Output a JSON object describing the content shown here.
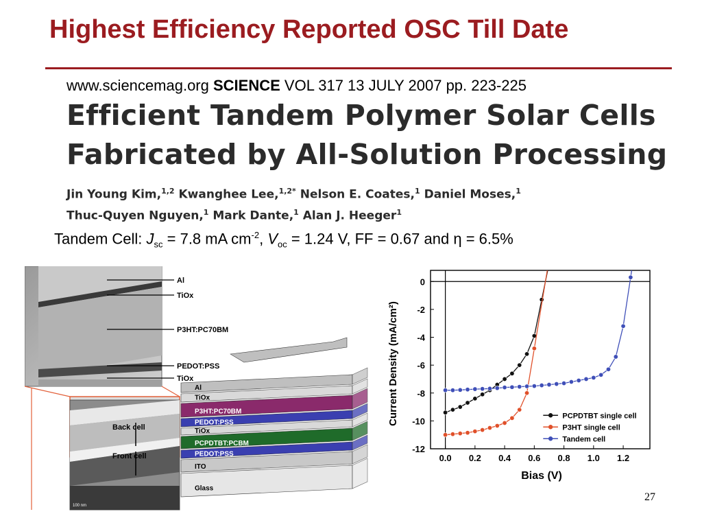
{
  "slide": {
    "title": "Highest Efficiency Reported OSC Till Date",
    "page_number": "27"
  },
  "citation": {
    "url": "www.sciencemag.org",
    "journal": "SCIENCE",
    "details": "VOL 317 13 JULY 2007 pp. 223-225"
  },
  "paper": {
    "title_line1": "Efficient Tandem Polymer Solar Cells",
    "title_line2": "Fabricated by All-Solution Processing",
    "authors": [
      {
        "name": "Jin Young Kim,",
        "aff": "1,2"
      },
      {
        "name": "Kwanghee Lee,",
        "aff": "1,2*"
      },
      {
        "name": "Nelson E. Coates,",
        "aff": "1"
      },
      {
        "name": "Daniel Moses,",
        "aff": "1"
      },
      {
        "name": "Thuc-Quyen Nguyen,",
        "aff": "1"
      },
      {
        "name": "Mark Dante,",
        "aff": "1"
      },
      {
        "name": "Alan J. Heeger",
        "aff": "1"
      }
    ]
  },
  "tandem": {
    "prefix": "Tandem Cell: ",
    "jsc_symbol": "J",
    "jsc_sub": "sc",
    "jsc_value": " = 7.8 mA cm",
    "jsc_exp": "-2",
    "sep": ", ",
    "voc_symbol": "V",
    "voc_sub": "oc",
    "voc_value": " = 1.24 V, FF = 0.67 and ",
    "eta": "η",
    "eta_value": " = 6.5%"
  },
  "device_figure": {
    "tem_labels": [
      "Al",
      "TiOx",
      "P3HT:PC70BM",
      "PEDOT:PSS",
      "TiOx"
    ],
    "inset_labels": [
      "Back cell",
      "Front cell"
    ],
    "scale_bar": "100 nm",
    "stack_layers": [
      {
        "label": "Al",
        "color": "#bfbfbf"
      },
      {
        "label": "TiOx",
        "color": "#d9d9d9"
      },
      {
        "label": "P3HT:PC70BM",
        "color": "#8a2a6b"
      },
      {
        "label": "PEDOT:PSS",
        "color": "#3a3fb0"
      },
      {
        "label": "TiOx",
        "color": "#d9d9d9"
      },
      {
        "label": "PCPDTBT:PCBM",
        "color": "#1f6b2a"
      },
      {
        "label": "PEDOT:PSS",
        "color": "#3a3fb0"
      },
      {
        "label": "ITO",
        "color": "#c8c8c8"
      },
      {
        "label": "Glass",
        "color": "#e6e6e6"
      }
    ]
  },
  "chart_data": {
    "type": "line",
    "xlabel": "Bias (V)",
    "ylabel": "Current Density (mA/cm²)",
    "xlim": [
      -0.1,
      1.38
    ],
    "ylim": [
      -12,
      0.8
    ],
    "xticks": [
      "0.0",
      "0.2",
      "0.4",
      "0.6",
      "0.8",
      "1.0",
      "1.2"
    ],
    "yticks": [
      "0",
      "-2",
      "-4",
      "-6",
      "-8",
      "-10",
      "-12"
    ],
    "legend_position": "bottom-right",
    "series": [
      {
        "name": "PCPDTBT single cell",
        "color": "#111111",
        "x": [
          0.0,
          0.05,
          0.1,
          0.15,
          0.2,
          0.25,
          0.3,
          0.35,
          0.4,
          0.45,
          0.5,
          0.55,
          0.6,
          0.65
        ],
        "y": [
          -9.4,
          -9.2,
          -9.0,
          -8.7,
          -8.4,
          -8.1,
          -7.8,
          -7.4,
          -7.0,
          -6.6,
          -6.0,
          -5.2,
          -3.9,
          -1.3
        ]
      },
      {
        "name": "P3HT single cell",
        "color": "#e0502a",
        "x": [
          0.0,
          0.05,
          0.1,
          0.15,
          0.2,
          0.25,
          0.3,
          0.35,
          0.4,
          0.45,
          0.5,
          0.55,
          0.6
        ],
        "y": [
          -11.0,
          -10.95,
          -10.9,
          -10.85,
          -10.75,
          -10.65,
          -10.5,
          -10.35,
          -10.15,
          -9.8,
          -9.2,
          -8.0,
          -4.8
        ]
      },
      {
        "name": "Tandem cell",
        "color": "#3f4fb8",
        "x": [
          0.0,
          0.05,
          0.1,
          0.15,
          0.2,
          0.25,
          0.3,
          0.35,
          0.4,
          0.45,
          0.5,
          0.55,
          0.6,
          0.65,
          0.7,
          0.75,
          0.8,
          0.85,
          0.9,
          0.95,
          1.0,
          1.05,
          1.1,
          1.15,
          1.2,
          1.25
        ],
        "y": [
          -7.8,
          -7.8,
          -7.78,
          -7.75,
          -7.72,
          -7.7,
          -7.68,
          -7.65,
          -7.6,
          -7.58,
          -7.55,
          -7.52,
          -7.5,
          -7.45,
          -7.4,
          -7.35,
          -7.3,
          -7.2,
          -7.1,
          -7.0,
          -6.9,
          -6.7,
          -6.3,
          -5.4,
          -3.2,
          0.3
        ]
      }
    ]
  }
}
